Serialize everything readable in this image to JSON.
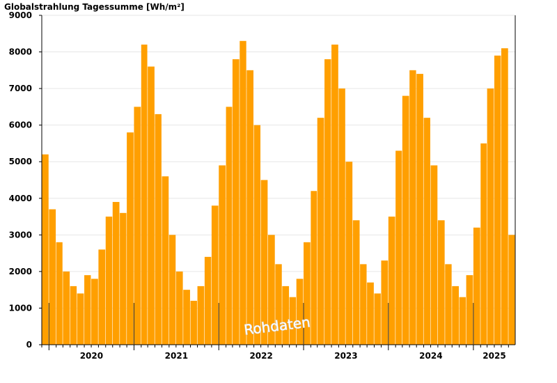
{
  "chart_data": {
    "type": "bar",
    "title": "Globalstrahlung Tagessumme [Wh/m²]",
    "watermark": "Rohdaten",
    "ylim": [
      0,
      9000
    ],
    "yticks": [
      0,
      1000,
      2000,
      3000,
      4000,
      5000,
      6000,
      7000,
      8000,
      9000
    ],
    "xlim": [
      "2019-12-01",
      "2025-06-30"
    ],
    "year_labels": [
      "2020",
      "2021",
      "2022",
      "2023",
      "2024",
      "2025"
    ],
    "grid": "horizontal",
    "bar_color": "#ff9f00",
    "series": [
      {
        "x": [
          "2019-12",
          "2020-01",
          "2020-02",
          "2020-03",
          "2020-04",
          "2020-05",
          "2020-06",
          "2020-07",
          "2020-08",
          "2020-09",
          "2020-10",
          "2020-11",
          "2020-12",
          "2021-01",
          "2021-02",
          "2021-03",
          "2021-04",
          "2021-05",
          "2021-06",
          "2021-07",
          "2021-08",
          "2021-09",
          "2021-10",
          "2021-11",
          "2021-12",
          "2022-01",
          "2022-02",
          "2022-03",
          "2022-04",
          "2022-05",
          "2022-06",
          "2022-07",
          "2022-08",
          "2022-09",
          "2022-10",
          "2022-11",
          "2022-12",
          "2023-01",
          "2023-02",
          "2023-03",
          "2023-04",
          "2023-05",
          "2023-06",
          "2023-07",
          "2023-08",
          "2023-09",
          "2023-10",
          "2023-11",
          "2023-12",
          "2024-01",
          "2024-02",
          "2024-03",
          "2024-04",
          "2024-05",
          "2024-06",
          "2024-07",
          "2024-08",
          "2024-09",
          "2024-10",
          "2024-11",
          "2024-12",
          "2025-01",
          "2025-02",
          "2025-03",
          "2025-04",
          "2025-05",
          "2025-06"
        ],
        "values": [
          5200,
          3700,
          2800,
          2000,
          1600,
          1400,
          1900,
          1800,
          2600,
          3500,
          3900,
          3600,
          5800,
          6500,
          8200,
          7600,
          6300,
          4600,
          3000,
          2000,
          1500,
          1200,
          1600,
          2400,
          3800,
          4900,
          6500,
          7800,
          8300,
          7500,
          6000,
          4500,
          3000,
          2200,
          1600,
          1300,
          1800,
          2800,
          4200,
          6200,
          7800,
          8200,
          7000,
          5000,
          3400,
          2200,
          1700,
          1400,
          2300,
          3500,
          5300,
          6800,
          7500,
          7400,
          6200,
          4900,
          3400,
          2200,
          1600,
          1300,
          1900,
          3200,
          5500,
          7000,
          7900,
          8100,
          3000
        ]
      }
    ]
  }
}
